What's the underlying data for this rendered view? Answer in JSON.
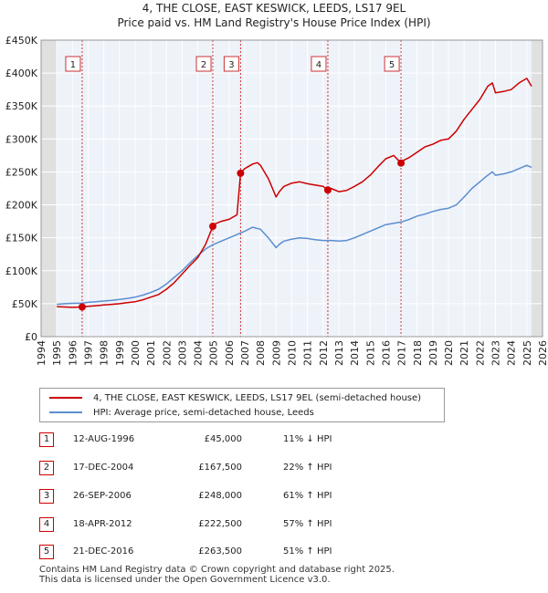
{
  "title_line1": "4, THE CLOSE, EAST KESWICK, LEEDS, LS17 9EL",
  "title_line2": "Price paid vs. HM Land Registry's House Price Index (HPI)",
  "chart_data": {
    "type": "line",
    "xlim": [
      1994,
      2026
    ],
    "ylim": [
      0,
      450000
    ],
    "x_ticks": [
      1994,
      1995,
      1996,
      1997,
      1998,
      1999,
      2000,
      2001,
      2002,
      2003,
      2004,
      2005,
      2006,
      2007,
      2008,
      2009,
      2010,
      2011,
      2012,
      2013,
      2014,
      2015,
      2016,
      2017,
      2018,
      2019,
      2020,
      2021,
      2022,
      2023,
      2024,
      2025,
      2026
    ],
    "y_ticks": [
      {
        "value": 0,
        "label": "£0"
      },
      {
        "value": 50000,
        "label": "£50K"
      },
      {
        "value": 100000,
        "label": "£100K"
      },
      {
        "value": 150000,
        "label": "£150K"
      },
      {
        "value": 200000,
        "label": "£200K"
      },
      {
        "value": 250000,
        "label": "£250K"
      },
      {
        "value": 300000,
        "label": "£300K"
      },
      {
        "value": 350000,
        "label": "£350K"
      },
      {
        "value": 400000,
        "label": "£400K"
      },
      {
        "value": 450000,
        "label": "£450K"
      }
    ],
    "series": [
      {
        "name": "4, THE CLOSE, EAST KESWICK, LEEDS, LS17 9EL (semi-detached house)",
        "color": "#cc0000",
        "x": [
          1995,
          1995.5,
          1996,
          1996.62,
          1997,
          1997.5,
          1998,
          1998.5,
          1999,
          1999.5,
          2000,
          2000.5,
          2001,
          2001.5,
          2002,
          2002.5,
          2003,
          2003.5,
          2004,
          2004.5,
          2004.96,
          2005,
          2005.5,
          2006,
          2006.5,
          2006.73,
          2007,
          2007.5,
          2007.8,
          2008,
          2008.5,
          2009,
          2009.2,
          2009.5,
          2010,
          2010.5,
          2011,
          2011.5,
          2012,
          2012.3,
          2012.5,
          2013,
          2013.5,
          2014,
          2014.5,
          2015,
          2015.5,
          2016,
          2016.5,
          2016.97,
          2017,
          2017.5,
          2018,
          2018.5,
          2019,
          2019.5,
          2020,
          2020.5,
          2021,
          2021.5,
          2022,
          2022.5,
          2022.8,
          2023,
          2023.5,
          2024,
          2024.5,
          2025,
          2025.3
        ],
        "y": [
          45500,
          45000,
          44500,
          45000,
          46000,
          47000,
          48000,
          49000,
          50000,
          51500,
          53000,
          56000,
          60000,
          64000,
          72000,
          82000,
          95000,
          108000,
          120000,
          140000,
          167500,
          170000,
          175000,
          178000,
          185000,
          248000,
          255000,
          262000,
          264000,
          260000,
          240000,
          212000,
          220000,
          228000,
          233000,
          235000,
          232000,
          230000,
          228000,
          222500,
          225000,
          220000,
          222000,
          228000,
          235000,
          245000,
          258000,
          270000,
          275000,
          263500,
          266000,
          272000,
          280000,
          288000,
          292000,
          298000,
          300000,
          312000,
          330000,
          345000,
          360000,
          380000,
          385000,
          370000,
          372000,
          375000,
          385000,
          392000,
          380000
        ]
      },
      {
        "name": "HPI: Average price, semi-detached house, Leeds",
        "color": "#5b8ed0",
        "x": [
          1995,
          1995.5,
          1996,
          1996.62,
          1997,
          1997.5,
          1998,
          1998.5,
          1999,
          1999.5,
          2000,
          2000.5,
          2001,
          2001.5,
          2002,
          2002.5,
          2003,
          2003.5,
          2004,
          2004.5,
          2005,
          2005.5,
          2006,
          2006.5,
          2007,
          2007.5,
          2008,
          2008.5,
          2009,
          2009.2,
          2009.5,
          2010,
          2010.5,
          2011,
          2011.5,
          2012,
          2012.5,
          2013,
          2013.5,
          2014,
          2014.5,
          2015,
          2015.5,
          2016,
          2016.5,
          2017,
          2017.5,
          2018,
          2018.5,
          2019,
          2019.5,
          2020,
          2020.5,
          2021,
          2021.5,
          2022,
          2022.5,
          2022.8,
          2023,
          2023.5,
          2024,
          2024.5,
          2025,
          2025.3
        ],
        "y": [
          49000,
          50000,
          50500,
          51000,
          52000,
          53000,
          54000,
          55000,
          56500,
          58000,
          60000,
          63000,
          67000,
          72000,
          80000,
          90000,
          100000,
          112000,
          123000,
          133000,
          140000,
          145000,
          150000,
          155000,
          160000,
          166000,
          163000,
          150000,
          135000,
          140000,
          145000,
          148000,
          150000,
          149000,
          147000,
          146000,
          146000,
          145000,
          146000,
          150000,
          155000,
          160000,
          165000,
          170000,
          172000,
          174000,
          178000,
          183000,
          186000,
          190000,
          193000,
          195000,
          200000,
          212000,
          225000,
          235000,
          245000,
          250000,
          245000,
          247000,
          250000,
          255000,
          260000,
          257000
        ]
      }
    ],
    "sales": [
      {
        "id": "1",
        "x": 1996.62,
        "y": 45000
      },
      {
        "id": "2",
        "x": 2004.96,
        "y": 167500
      },
      {
        "id": "3",
        "x": 2006.73,
        "y": 248000
      },
      {
        "id": "4",
        "x": 2012.3,
        "y": 222500
      },
      {
        "id": "5",
        "x": 2016.97,
        "y": 263500
      }
    ],
    "band_x": [
      1994,
      1995
    ],
    "band_x2": [
      2025.3,
      2026
    ]
  },
  "legend": {
    "property_label": "4, THE CLOSE, EAST KESWICK, LEEDS, LS17 9EL (semi-detached house)",
    "hpi_label": "HPI: Average price, semi-detached house, Leeds",
    "property_color": "#cc0000",
    "hpi_color": "#5b8ed0"
  },
  "sales_table": [
    {
      "num": "1",
      "date": "12-AUG-1996",
      "price": "£45,000",
      "hpi": "11% ↓ HPI"
    },
    {
      "num": "2",
      "date": "17-DEC-2004",
      "price": "£167,500",
      "hpi": "22% ↑ HPI"
    },
    {
      "num": "3",
      "date": "26-SEP-2006",
      "price": "£248,000",
      "hpi": "61% ↑ HPI"
    },
    {
      "num": "4",
      "date": "18-APR-2012",
      "price": "£222,500",
      "hpi": "57% ↑ HPI"
    },
    {
      "num": "5",
      "date": "21-DEC-2016",
      "price": "£263,500",
      "hpi": "51% ↑ HPI"
    }
  ],
  "footer_line1": "Contains HM Land Registry data © Crown copyright and database right 2025.",
  "footer_line2": "This data is licensed under the Open Government Licence v3.0."
}
